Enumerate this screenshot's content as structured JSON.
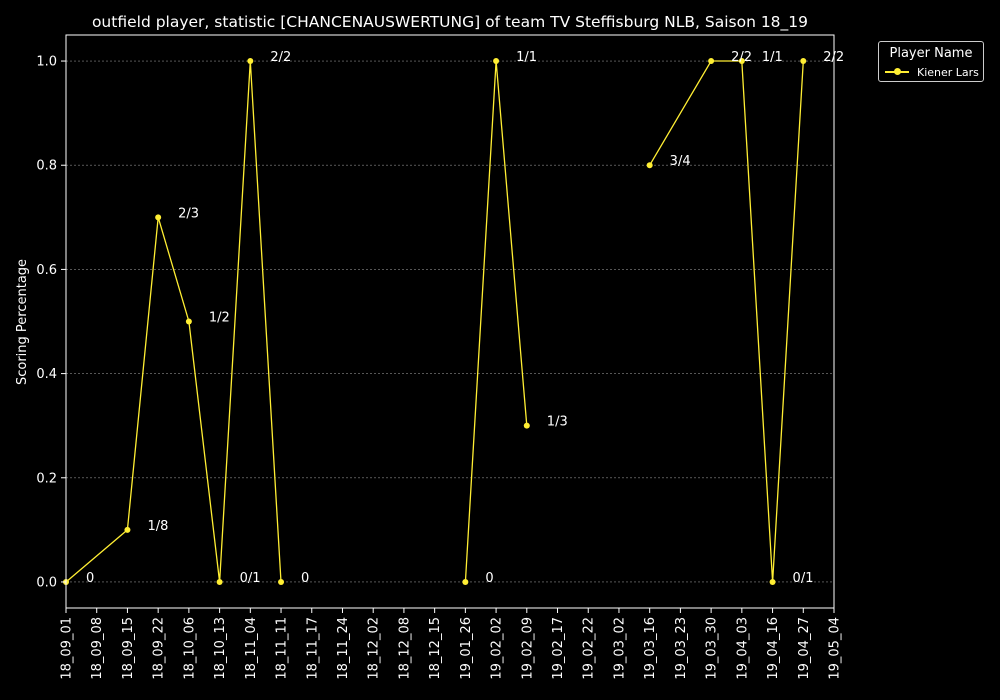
{
  "colors": {
    "background": "#000000",
    "series": "#ffee33",
    "axis": "#ffffff",
    "grid": "#8a8a8a"
  },
  "chart_data": {
    "type": "line",
    "title": "outfield player, statistic [CHANCENAUSWERTUNG] of team TV Steffisburg NLB, Saison 18_19",
    "xlabel": "",
    "ylabel": "Scoring Percentage",
    "x_ticks": [
      "18_09_01",
      "18_09_08",
      "18_09_15",
      "18_09_22",
      "18_10_06",
      "18_10_13",
      "18_11_04",
      "18_11_11",
      "18_11_17",
      "18_11_24",
      "18_12_02",
      "18_12_08",
      "18_12_15",
      "19_01_26",
      "19_02_02",
      "19_02_09",
      "19_02_17",
      "19_02_22",
      "19_03_02",
      "19_03_16",
      "19_03_23",
      "19_03_30",
      "19_04_03",
      "19_04_16",
      "19_04_27",
      "19_05_04"
    ],
    "y_ticks": [
      "0.0",
      "0.2",
      "0.4",
      "0.6",
      "0.8",
      "1.0"
    ],
    "y_tick_values": [
      0,
      0.2,
      0.4,
      0.6,
      0.8,
      1.0
    ],
    "ylim": [
      -0.05,
      1.05
    ],
    "grid": true,
    "legend": {
      "title": "Player Name",
      "placement": "top-right-outside"
    },
    "series": [
      {
        "name": "Kiener Lars",
        "points": [
          {
            "x": "18_09_01",
            "y": 0.0,
            "label": "0"
          },
          {
            "x": "18_09_15",
            "y": 0.1,
            "label": "1/8"
          },
          {
            "x": "18_09_22",
            "y": 0.7,
            "label": "2/3"
          },
          {
            "x": "18_10_06",
            "y": 0.5,
            "label": "1/2"
          },
          {
            "x": "18_10_13",
            "y": 0.0,
            "label": "0/1"
          },
          {
            "x": "18_11_04",
            "y": 1.0,
            "label": "2/2"
          },
          {
            "x": "18_11_11",
            "y": 0.0,
            "label": "0"
          },
          {
            "x": "19_01_26",
            "y": 0.0,
            "label": "0"
          },
          {
            "x": "19_02_02",
            "y": 1.0,
            "label": "1/1"
          },
          {
            "x": "19_02_09",
            "y": 0.3,
            "label": "1/3"
          },
          {
            "x": "19_03_16",
            "y": 0.8,
            "label": "3/4"
          },
          {
            "x": "19_03_30",
            "y": 1.0,
            "label": "2/2"
          },
          {
            "x": "19_04_03",
            "y": 1.0,
            "label": "1/1"
          },
          {
            "x": "19_04_16",
            "y": 0.0,
            "label": "0/1"
          },
          {
            "x": "19_04_27",
            "y": 1.0,
            "label": "2/2"
          }
        ]
      }
    ]
  }
}
